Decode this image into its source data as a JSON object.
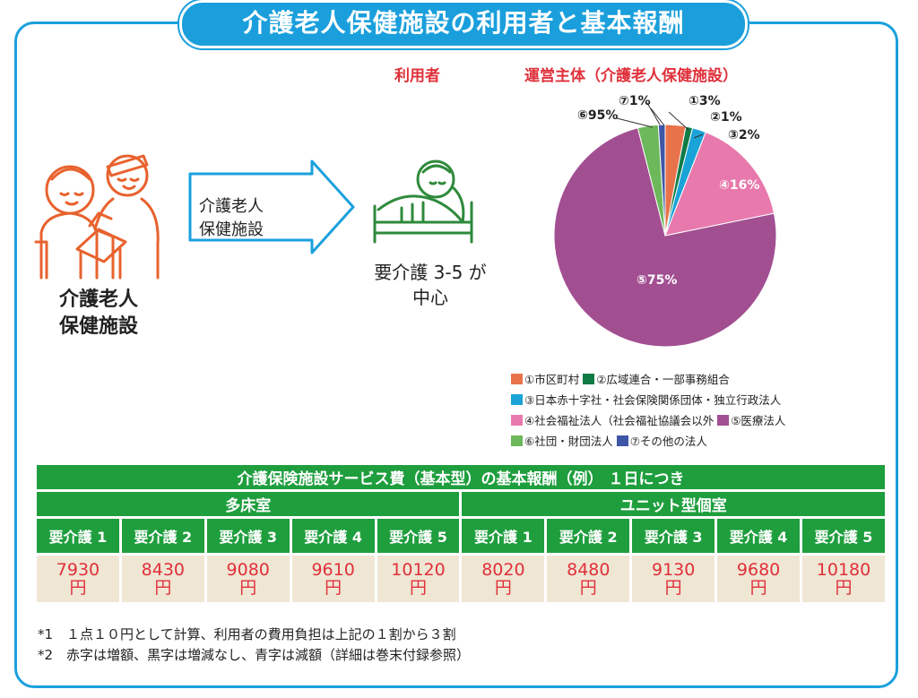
{
  "title": "介護老人保健施設の利用者と基本報酬",
  "left": {
    "facility_label_line1": "介護老人",
    "facility_label_line2": "保健施設",
    "arrow_text_line1": "介護老人",
    "arrow_text_line2": "保健施設",
    "care_level_line1": "要介護 3-5 が",
    "care_level_line2": "中心"
  },
  "users_heading": "利用者",
  "operator_heading": "運営主体（介護老人保健施設）",
  "icons": [
    "caregiver-elder-illustration-icon",
    "arrow-right-icon",
    "bedridden-elder-illustration-icon"
  ],
  "chart_data": {
    "type": "pie",
    "title": "運営主体（介護老人保健施設）",
    "slices": [
      {
        "label": "①",
        "percent": 3,
        "legend": "①市区町村",
        "color": "#e8734a"
      },
      {
        "label": "②",
        "percent": 1,
        "legend": "②広域連合・一部事務組合",
        "color": "#0f7b45"
      },
      {
        "label": "③",
        "percent": 2,
        "legend": "③日本赤十字社・社会保険関係団体・独立行政法人",
        "color": "#1aa3d6"
      },
      {
        "label": "④",
        "percent": 16,
        "legend": "④社会福祉法人（社会福祉協議会以外",
        "color": "#e879ac"
      },
      {
        "label": "⑤",
        "percent": 75,
        "legend": "⑤医療法人",
        "color": "#a24f92"
      },
      {
        "label": "⑥",
        "percent": 95,
        "legend": "⑥社団・財団法人",
        "color": "#6cb85a"
      },
      {
        "label": "⑦",
        "percent": 1,
        "legend": "⑦その他の法人",
        "color": "#3e56a6"
      }
    ],
    "slice_labels": [
      "①3%",
      "②1%",
      "③2%",
      "④16%",
      "⑤75%",
      "⑥95%",
      "⑦1%"
    ],
    "legend_rows": [
      [
        "①市区町村",
        "②広域連合・一部事務組合"
      ],
      [
        "③日本赤十字社・社会保険関係団体・独立行政法人"
      ],
      [
        "④社会福祉法人（社会福祉協議会以外",
        "⑤医療法人"
      ],
      [
        "⑥社団・財団法人",
        "⑦その他の法人"
      ]
    ]
  },
  "table": {
    "title": "介護保険施設サービス費（基本型）の基本報酬（例） １日につき",
    "groups": [
      "多床室",
      "ユニット型個室"
    ],
    "levels": [
      "要介護 1",
      "要介護 2",
      "要介護 3",
      "要介護 4",
      "要介護 5",
      "要介護 1",
      "要介護 2",
      "要介護 3",
      "要介護 4",
      "要介護 5"
    ],
    "values": [
      "7930",
      "8430",
      "9080",
      "9610",
      "10120",
      "8020",
      "8480",
      "9130",
      "9680",
      "10180"
    ],
    "unit": "円"
  },
  "notes": [
    "*1　１点１０円として計算、利用者の費用負担は上記の１割から３割",
    "*2　赤字は増額、黒字は増減なし、青字は減額（詳細は巻末付録参照）"
  ]
}
